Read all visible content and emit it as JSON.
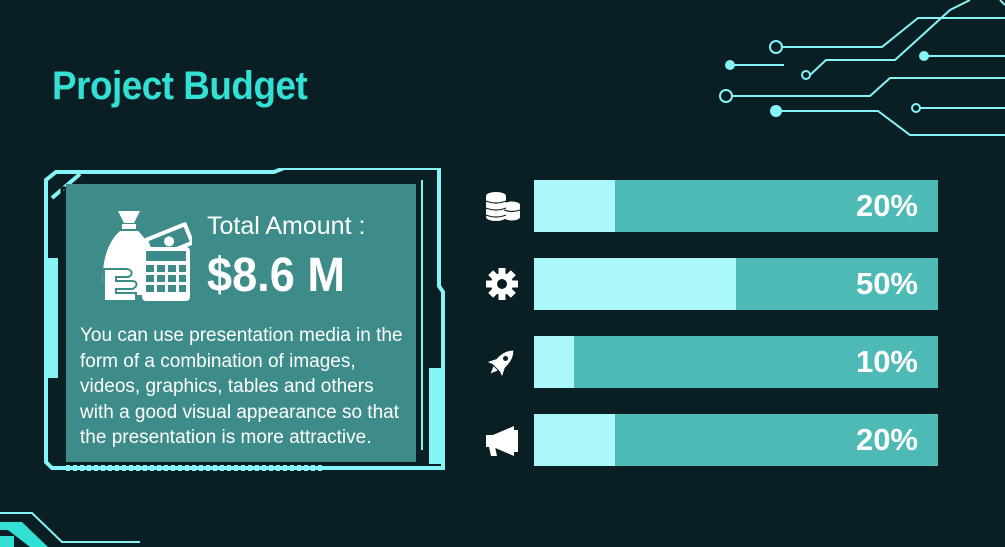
{
  "slide": {
    "title": "Project Budget"
  },
  "summary": {
    "total_label": "Total Amount :",
    "total_value": "$8.6 M",
    "icon": "money-bag-and-calculator-icon",
    "description": "You can use presentation media in the form of a combination of images, videos, graphics, tables and others with a good visual appearance so that the presentation is more attractive."
  },
  "budget_bars": [
    {
      "icon": "coins-icon",
      "percent": 20,
      "label": "20%"
    },
    {
      "icon": "gear-icon",
      "percent": 50,
      "label": "50%"
    },
    {
      "icon": "rocket-icon",
      "percent": 10,
      "label": "10%"
    },
    {
      "icon": "megaphone-icon",
      "percent": 20,
      "label": "20%"
    }
  ],
  "colors": {
    "background": "#0a1f24",
    "accent": "#33e0d4",
    "panel": "#3d8c8a",
    "bar_track": "#4dbab6",
    "bar_fill": "#aaf8fb",
    "frame": "#86f3f7"
  }
}
